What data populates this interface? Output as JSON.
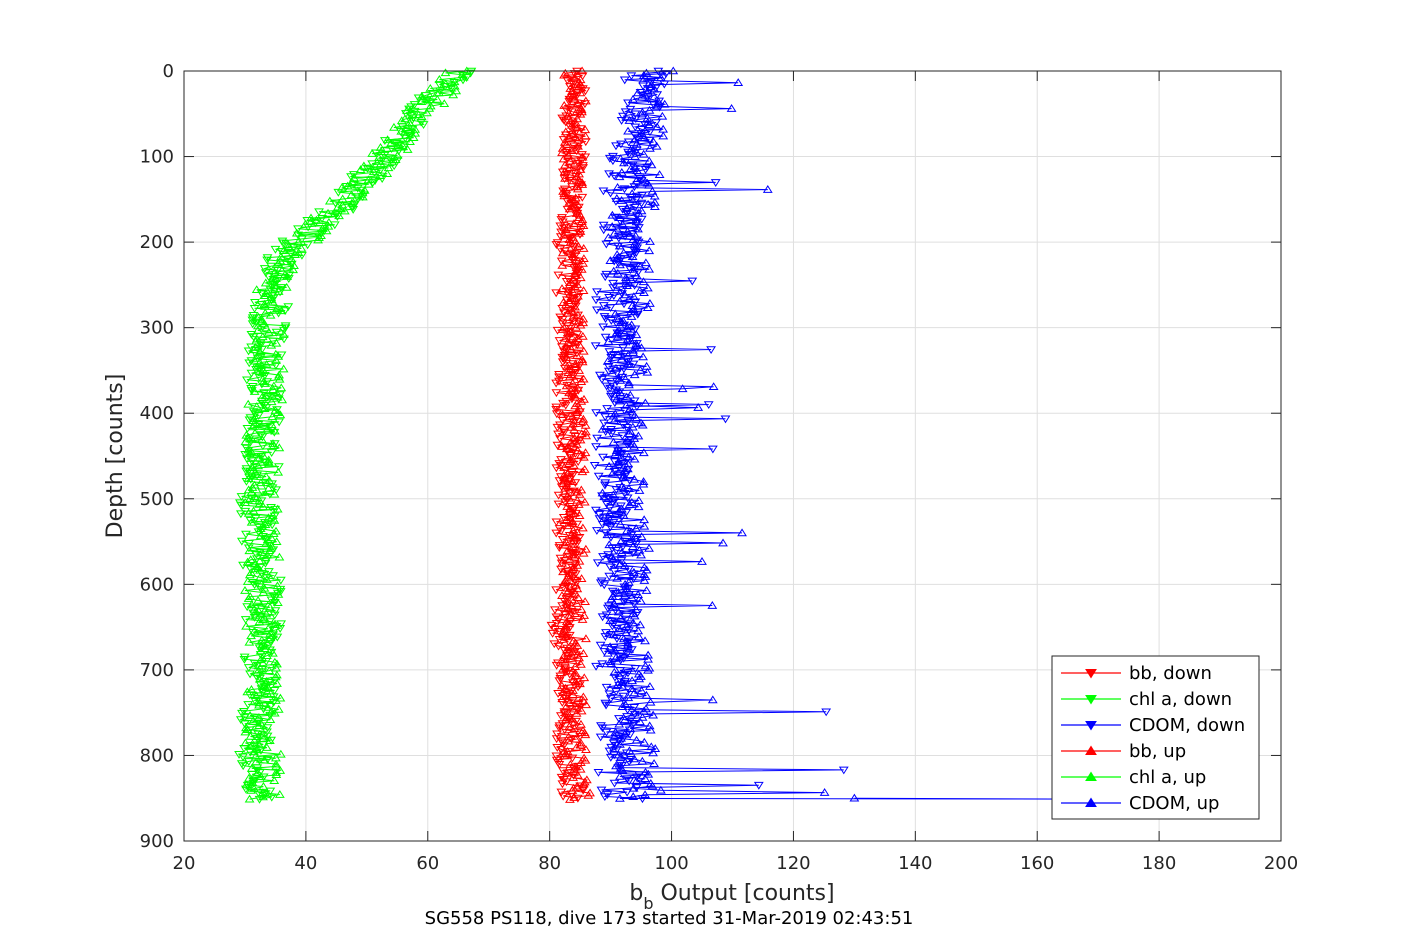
{
  "chart_data": {
    "type": "line",
    "xlabel_main": "b",
    "xlabel_sub": "b",
    "xlabel_rest": " Output [counts]",
    "ylabel": "Depth [counts]",
    "footer": "SG558 PS118, dive 173 started 31-Mar-2019 02:43:51",
    "xlim": [
      20,
      200
    ],
    "ylim": [
      0,
      900
    ],
    "y_reversed": true,
    "grid": true,
    "x_ticks": [
      "20",
      "40",
      "60",
      "80",
      "100",
      "120",
      "140",
      "160",
      "180",
      "200"
    ],
    "y_ticks": [
      "0",
      "100",
      "200",
      "300",
      "400",
      "500",
      "600",
      "700",
      "800",
      "900"
    ],
    "legend_position": "bottom-right",
    "series": [
      {
        "name": "bb, down",
        "color": "#ff0000",
        "marker": "triangle-down",
        "depth": [
          0,
          50,
          100,
          150,
          200,
          250,
          300,
          350,
          400,
          450,
          500,
          550,
          600,
          650,
          700,
          750,
          800,
          850
        ],
        "values": [
          84,
          84,
          84,
          84,
          83,
          83,
          83,
          83,
          83,
          83,
          83,
          83,
          83,
          82,
          83,
          83,
          83,
          84
        ]
      },
      {
        "name": "chl a, down",
        "color": "#00ff00",
        "marker": "triangle-down",
        "depth": [
          0,
          25,
          50,
          75,
          100,
          125,
          150,
          175,
          200,
          225,
          250,
          300,
          350,
          400,
          450,
          500,
          550,
          600,
          650,
          700,
          750,
          800,
          850
        ],
        "values": [
          66,
          62,
          58,
          55,
          53,
          50,
          47,
          43,
          38,
          36,
          35,
          34,
          33,
          33,
          33,
          32,
          32,
          33,
          33,
          32,
          32,
          32,
          32
        ]
      },
      {
        "name": "CDOM, down",
        "color": "#0000ff",
        "marker": "triangle-down",
        "depth": [
          0,
          50,
          100,
          150,
          200,
          250,
          300,
          350,
          400,
          450,
          500,
          550,
          600,
          650,
          700,
          750,
          800,
          850
        ],
        "values": [
          96,
          95,
          93,
          92,
          92,
          91,
          91,
          91,
          91,
          90,
          90,
          91,
          91,
          91,
          91,
          91,
          91,
          92
        ]
      },
      {
        "name": "bb, up",
        "color": "#ff0000",
        "marker": "triangle-up",
        "depth": [
          0,
          50,
          100,
          150,
          200,
          250,
          300,
          350,
          400,
          450,
          500,
          550,
          600,
          650,
          700,
          750,
          800,
          850
        ],
        "values": [
          84,
          84,
          84,
          84,
          84,
          84,
          84,
          84,
          84,
          84,
          84,
          84,
          84,
          84,
          84,
          84,
          84,
          85
        ]
      },
      {
        "name": "chl a, up",
        "color": "#00ff00",
        "marker": "triangle-up",
        "depth": [
          0,
          25,
          50,
          75,
          100,
          125,
          150,
          175,
          200,
          225,
          250,
          300,
          350,
          400,
          450,
          500,
          550,
          600,
          650,
          700,
          750,
          800,
          850
        ],
        "values": [
          64,
          62,
          59,
          56,
          53,
          50,
          47,
          43,
          39,
          36,
          35,
          34,
          34,
          33,
          33,
          33,
          33,
          33,
          33,
          33,
          33,
          33,
          33
        ]
      },
      {
        "name": "CDOM, up",
        "color": "#0000ff",
        "marker": "triangle-up",
        "depth": [
          0,
          50,
          100,
          150,
          200,
          250,
          300,
          350,
          400,
          450,
          500,
          550,
          600,
          650,
          700,
          750,
          800,
          850
        ],
        "values": [
          97,
          96,
          95,
          94,
          93,
          93,
          93,
          93,
          92,
          92,
          92,
          93,
          93,
          93,
          93,
          94,
          94,
          95
        ]
      }
    ]
  }
}
